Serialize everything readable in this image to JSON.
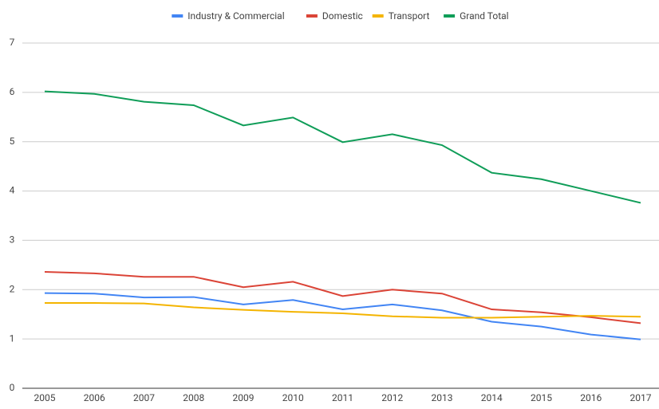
{
  "chart_data": {
    "type": "line",
    "categories": [
      "2005",
      "2006",
      "2007",
      "2008",
      "2009",
      "2010",
      "2011",
      "2012",
      "2013",
      "2014",
      "2015",
      "2016",
      "2017"
    ],
    "series": [
      {
        "name": "Industry & Commercial",
        "color": "#4285f4",
        "values": [
          1.93,
          1.92,
          1.84,
          1.85,
          1.7,
          1.79,
          1.6,
          1.7,
          1.58,
          1.35,
          1.25,
          1.09,
          0.99
        ]
      },
      {
        "name": "Domestic",
        "color": "#db4437",
        "values": [
          2.36,
          2.33,
          2.26,
          2.26,
          2.05,
          2.16,
          1.87,
          2.0,
          1.92,
          1.6,
          1.54,
          1.44,
          1.32
        ]
      },
      {
        "name": "Transport",
        "color": "#f4b400",
        "values": [
          1.73,
          1.73,
          1.72,
          1.64,
          1.59,
          1.55,
          1.52,
          1.46,
          1.43,
          1.43,
          1.45,
          1.47,
          1.45
        ]
      },
      {
        "name": "Grand Total",
        "color": "#0f9d58",
        "values": [
          6.02,
          5.97,
          5.81,
          5.74,
          5.33,
          5.49,
          4.99,
          5.15,
          4.93,
          4.37,
          4.24,
          4.0,
          3.76
        ]
      }
    ],
    "ylim": [
      0,
      7
    ],
    "yticks": [
      0,
      1,
      2,
      3,
      4,
      5,
      6,
      7
    ],
    "grid": true,
    "legend": "top"
  }
}
